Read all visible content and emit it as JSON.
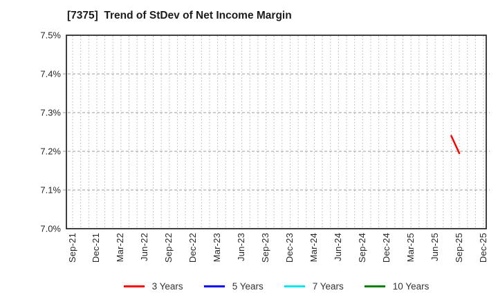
{
  "page": {
    "background": "#ffffff"
  },
  "chart_data": {
    "type": "line",
    "title": "[7375]  Trend of StDev of Net Income Margin",
    "xlabel": "",
    "ylabel": "",
    "ylim": [
      7.0,
      7.5
    ],
    "yticks": [
      {
        "value": 7.0,
        "label": "7.0%"
      },
      {
        "value": 7.1,
        "label": "7.1%"
      },
      {
        "value": 7.2,
        "label": "7.2%"
      },
      {
        "value": 7.3,
        "label": "7.3%"
      },
      {
        "value": 7.4,
        "label": "7.4%"
      },
      {
        "value": 7.5,
        "label": "7.5%"
      }
    ],
    "x_axis": {
      "unit": "month",
      "start_label": "Sep-21",
      "end_label": "Dec-25",
      "months_total": 51,
      "label_every_months": 3,
      "tick_labels": [
        "Sep-21",
        "Dec-21",
        "Mar-22",
        "Jun-22",
        "Sep-22",
        "Dec-22",
        "Mar-23",
        "Jun-23",
        "Sep-23",
        "Dec-23",
        "Mar-24",
        "Jun-24",
        "Sep-24",
        "Dec-24",
        "Mar-25",
        "Jun-25",
        "Sep-25",
        "Dec-25"
      ]
    },
    "grid": {
      "vertical": "dotted gray line at every month",
      "horizontal": "dashed gray line at every 0.1%"
    },
    "legend": {
      "position": "bottom-center",
      "entries": [
        {
          "label": "3 Years",
          "color": "#ff0000"
        },
        {
          "label": "5 Years",
          "color": "#0000ff"
        },
        {
          "label": "7 Years",
          "color": "#00e6ee"
        },
        {
          "label": "10 Years",
          "color": "#008000"
        }
      ]
    },
    "series": [
      {
        "name": "3 Years",
        "color": "#ff0000",
        "points": [
          {
            "x": "Aug-25",
            "month_index": 47,
            "y": 7.24
          },
          {
            "x": "Sep-25",
            "month_index": 48,
            "y": 7.195
          }
        ]
      },
      {
        "name": "5 Years",
        "color": "#0000ff",
        "points": []
      },
      {
        "name": "7 Years",
        "color": "#00e6ee",
        "points": []
      },
      {
        "name": "10 Years",
        "color": "#008000",
        "points": []
      }
    ]
  }
}
